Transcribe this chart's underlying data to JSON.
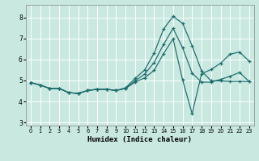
{
  "xlabel": "Humidex (Indice chaleur)",
  "bg_color": "#c8e8e0",
  "plot_bg_color": "#c8e8e0",
  "outer_bg": "#c8e8e0",
  "grid_color": "#ffffff",
  "line_color": "#1a6b6b",
  "xlim": [
    -0.5,
    23.5
  ],
  "ylim": [
    2.85,
    8.6
  ],
  "yticks": [
    3,
    4,
    5,
    6,
    7,
    8
  ],
  "xticks": [
    0,
    1,
    2,
    3,
    4,
    5,
    6,
    7,
    8,
    9,
    10,
    11,
    12,
    13,
    14,
    15,
    16,
    17,
    18,
    19,
    20,
    21,
    22,
    23
  ],
  "lines": [
    {
      "x": [
        0,
        1,
        2,
        3,
        4,
        5,
        6,
        7,
        8,
        9,
        10,
        11,
        12,
        13,
        14,
        15,
        16,
        17,
        18,
        19,
        20,
        21,
        22,
        23
      ],
      "y": [
        4.9,
        4.78,
        4.62,
        4.62,
        4.42,
        4.38,
        4.52,
        4.58,
        4.58,
        4.52,
        4.65,
        5.1,
        5.5,
        6.3,
        7.45,
        8.05,
        7.72,
        6.65,
        5.45,
        4.98,
        4.98,
        4.95,
        4.95,
        4.95
      ]
    },
    {
      "x": [
        0,
        1,
        2,
        3,
        4,
        5,
        6,
        7,
        8,
        9,
        10,
        11,
        12,
        13,
        14,
        15,
        16,
        17,
        18,
        19,
        20,
        21,
        22,
        23
      ],
      "y": [
        4.9,
        4.78,
        4.62,
        4.62,
        4.42,
        4.38,
        4.52,
        4.58,
        4.58,
        4.52,
        4.62,
        4.98,
        5.3,
        5.85,
        6.72,
        7.48,
        6.55,
        5.35,
        4.92,
        4.92,
        5.05,
        5.2,
        5.38,
        4.95
      ]
    },
    {
      "x": [
        0,
        1,
        2,
        3,
        4,
        5,
        6,
        7,
        8,
        9,
        10,
        11,
        12,
        13,
        14,
        15,
        16,
        17,
        18,
        19,
        20,
        21,
        22,
        23
      ],
      "y": [
        4.9,
        4.78,
        4.62,
        4.62,
        4.42,
        4.38,
        4.52,
        4.58,
        4.58,
        4.52,
        4.62,
        4.92,
        5.12,
        5.48,
        6.28,
        6.98,
        5.02,
        3.42,
        5.32,
        5.52,
        5.82,
        6.25,
        6.35,
        5.92
      ]
    }
  ]
}
